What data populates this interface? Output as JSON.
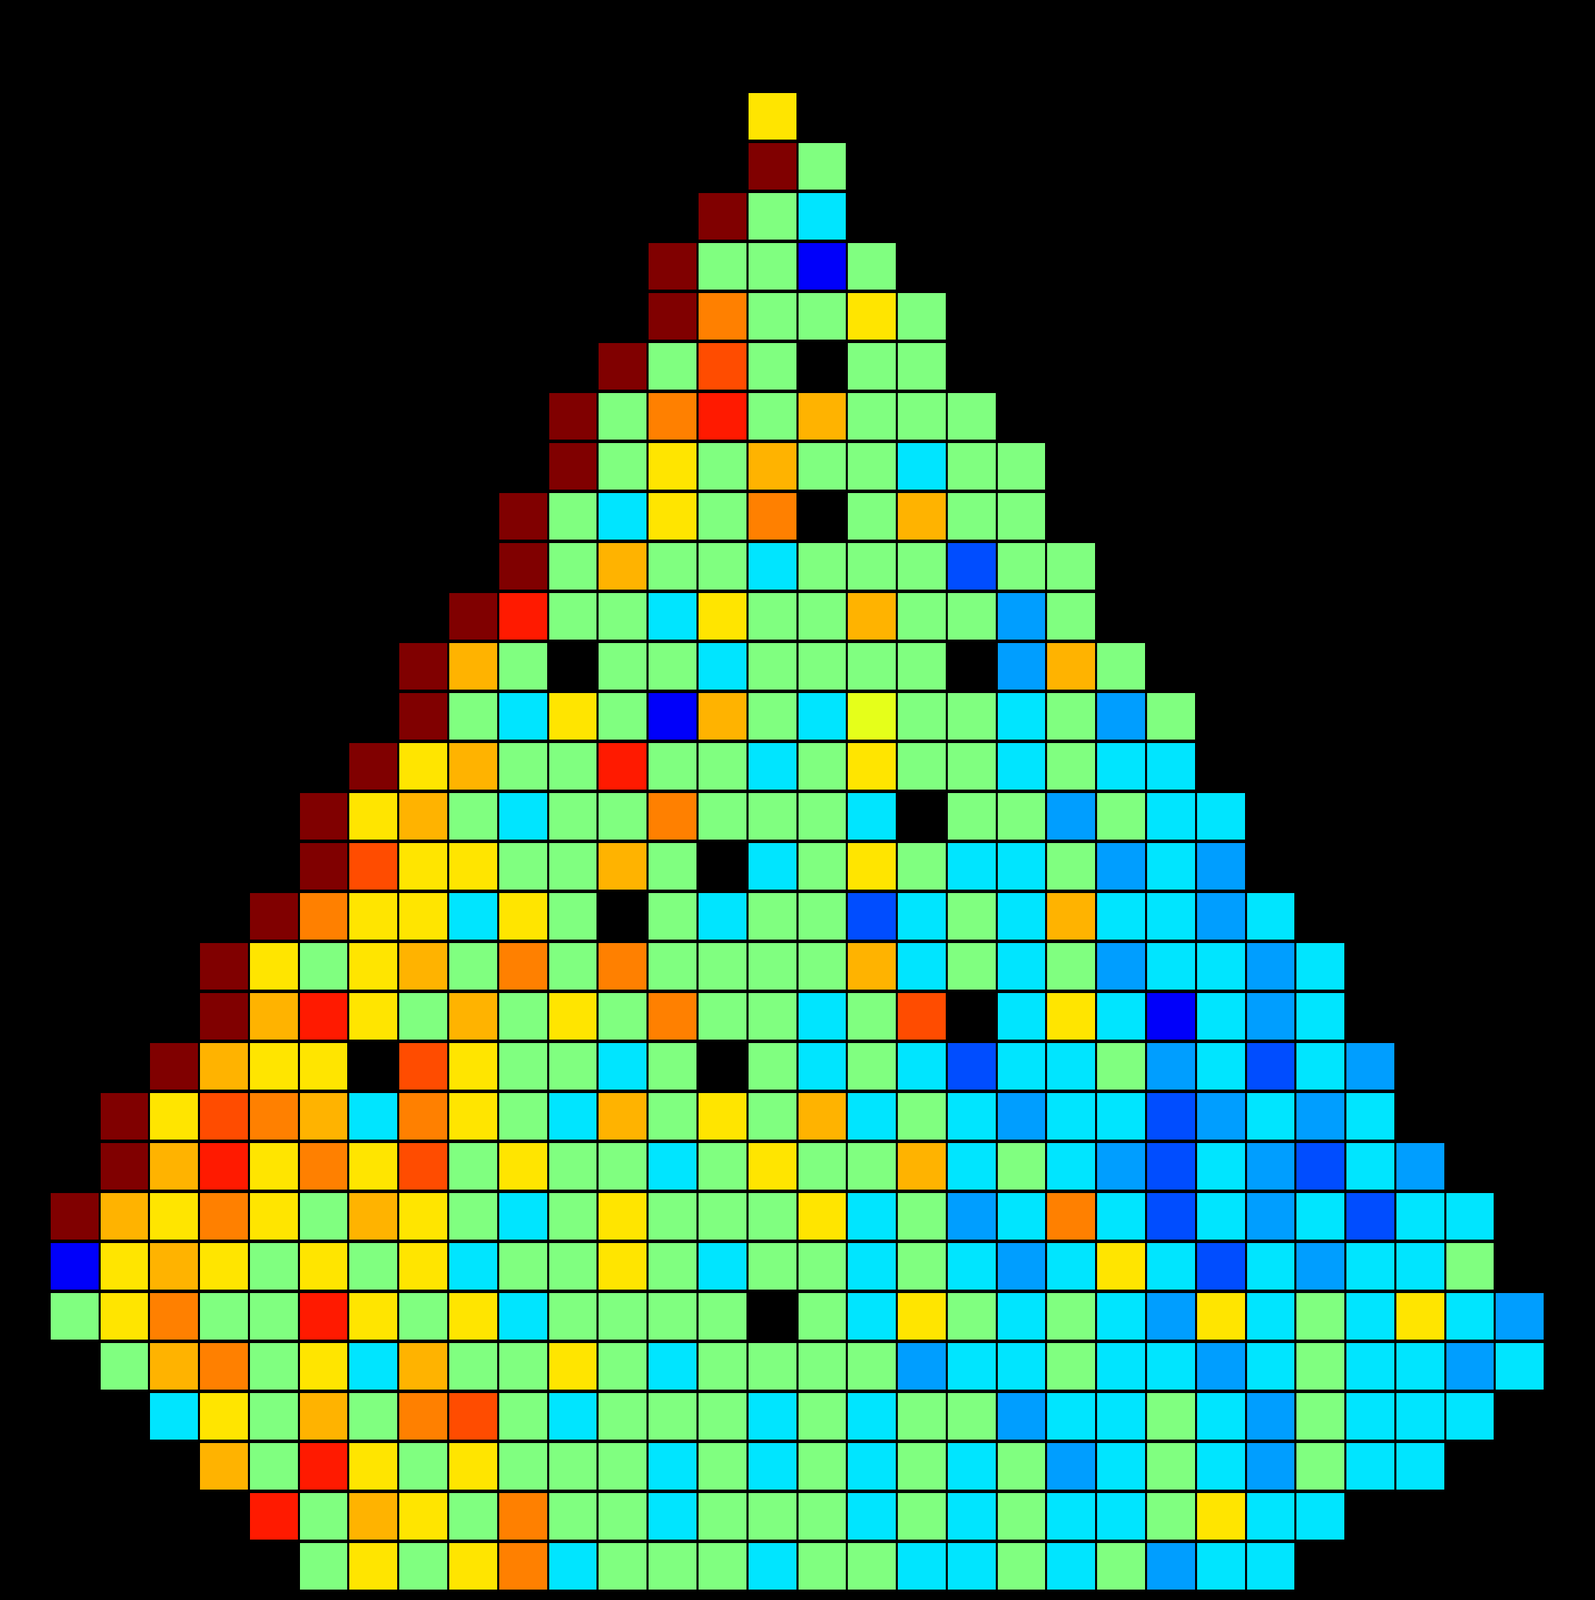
{
  "chart_data": {
    "type": "heatmap",
    "zlim": [
      0,
      1
    ],
    "tick_labels": false,
    "grid": false,
    "cells": [
      [
        null,
        null,
        null,
        null,
        null,
        null,
        null,
        null,
        null,
        null,
        null,
        null,
        null,
        null,
        null,
        0.65,
        null,
        null,
        null,
        null,
        null,
        null,
        null,
        null,
        null,
        null,
        null,
        null,
        null,
        null,
        null,
        null
      ],
      [
        null,
        null,
        null,
        null,
        null,
        null,
        null,
        null,
        null,
        null,
        null,
        null,
        null,
        null,
        null,
        1.0,
        0.5,
        null,
        null,
        null,
        null,
        null,
        null,
        null,
        null,
        null,
        null,
        null,
        null,
        null,
        null,
        null
      ],
      [
        null,
        null,
        null,
        null,
        null,
        null,
        null,
        null,
        null,
        null,
        null,
        null,
        null,
        null,
        1.0,
        0.5,
        0.35,
        null,
        null,
        null,
        null,
        null,
        null,
        null,
        null,
        null,
        null,
        null,
        null,
        null,
        null,
        null
      ],
      [
        null,
        null,
        null,
        null,
        null,
        null,
        null,
        null,
        null,
        null,
        null,
        null,
        null,
        1.0,
        0.5,
        0.5,
        0.12,
        0.5,
        null,
        null,
        null,
        null,
        null,
        null,
        null,
        null,
        null,
        null,
        null,
        null,
        null,
        null
      ],
      [
        null,
        null,
        null,
        null,
        null,
        null,
        null,
        null,
        null,
        null,
        null,
        null,
        null,
        1.0,
        0.75,
        0.5,
        0.5,
        0.65,
        0.5,
        null,
        null,
        null,
        null,
        null,
        null,
        null,
        null,
        null,
        null,
        null,
        null,
        null
      ],
      [
        null,
        null,
        null,
        null,
        null,
        null,
        null,
        null,
        null,
        null,
        null,
        null,
        1.0,
        0.5,
        0.8,
        0.5,
        null,
        0.5,
        0.5,
        null,
        null,
        null,
        null,
        null,
        null,
        null,
        null,
        null,
        null,
        null,
        null,
        null
      ],
      [
        null,
        null,
        null,
        null,
        null,
        null,
        null,
        null,
        null,
        null,
        null,
        1.0,
        0.5,
        0.75,
        0.85,
        0.5,
        0.7,
        0.5,
        0.5,
        0.5,
        null,
        null,
        null,
        null,
        null,
        null,
        null,
        null,
        null,
        null,
        null,
        null
      ],
      [
        null,
        null,
        null,
        null,
        null,
        null,
        null,
        null,
        null,
        null,
        null,
        1.0,
        0.5,
        0.65,
        0.5,
        0.7,
        0.5,
        0.5,
        0.35,
        0.5,
        0.5,
        null,
        null,
        null,
        null,
        null,
        null,
        null,
        null,
        null,
        null,
        null
      ],
      [
        null,
        null,
        null,
        null,
        null,
        null,
        null,
        null,
        null,
        null,
        1.0,
        0.5,
        0.35,
        0.65,
        0.5,
        0.75,
        null,
        0.5,
        0.7,
        0.5,
        0.5,
        null,
        null,
        null,
        null,
        null,
        null,
        null,
        null,
        null,
        null,
        null
      ],
      [
        null,
        null,
        null,
        null,
        null,
        null,
        null,
        null,
        null,
        null,
        1.0,
        0.5,
        0.7,
        0.5,
        0.5,
        0.35,
        0.5,
        0.5,
        0.5,
        0.2,
        0.5,
        0.5,
        null,
        null,
        null,
        null,
        null,
        null,
        null,
        null,
        null,
        null
      ],
      [
        null,
        null,
        null,
        null,
        null,
        null,
        null,
        null,
        null,
        1.0,
        0.85,
        0.5,
        0.5,
        0.35,
        0.65,
        0.5,
        0.5,
        0.7,
        0.5,
        0.5,
        0.28,
        0.5,
        null,
        null,
        null,
        null,
        null,
        null,
        null,
        null,
        null,
        null
      ],
      [
        null,
        null,
        null,
        null,
        null,
        null,
        null,
        null,
        1.0,
        0.7,
        0.5,
        null,
        0.5,
        0.5,
        0.35,
        0.5,
        0.5,
        0.5,
        0.5,
        null,
        0.28,
        0.7,
        0.5,
        null,
        null,
        null,
        null,
        null,
        null,
        null,
        null,
        null
      ],
      [
        null,
        null,
        null,
        null,
        null,
        null,
        null,
        null,
        1.0,
        0.5,
        0.35,
        0.65,
        0.5,
        0.12,
        0.7,
        0.5,
        0.35,
        0.6,
        0.5,
        0.5,
        0.35,
        0.5,
        0.28,
        0.5,
        null,
        null,
        null,
        null,
        null,
        null,
        null,
        null
      ],
      [
        null,
        null,
        null,
        null,
        null,
        null,
        null,
        1.0,
        0.65,
        0.7,
        0.5,
        0.5,
        0.85,
        0.5,
        0.5,
        0.35,
        0.5,
        0.65,
        0.5,
        0.5,
        0.35,
        0.5,
        0.35,
        0.35,
        null,
        null,
        null,
        null,
        null,
        null,
        null,
        null
      ],
      [
        null,
        null,
        null,
        null,
        null,
        null,
        1.0,
        0.65,
        0.7,
        0.5,
        0.35,
        0.5,
        0.5,
        0.75,
        0.5,
        0.5,
        0.5,
        0.35,
        null,
        0.5,
        0.5,
        0.28,
        0.5,
        0.35,
        0.35,
        null,
        null,
        null,
        null,
        null,
        null,
        null
      ],
      [
        null,
        null,
        null,
        null,
        null,
        null,
        1.0,
        0.8,
        0.65,
        0.65,
        0.5,
        0.5,
        0.7,
        0.5,
        null,
        0.35,
        0.5,
        0.65,
        0.5,
        0.35,
        0.35,
        0.5,
        0.28,
        0.35,
        0.28,
        null,
        null,
        null,
        null,
        null,
        null,
        null
      ],
      [
        null,
        null,
        null,
        null,
        null,
        1.0,
        0.75,
        0.65,
        0.65,
        0.35,
        0.65,
        0.5,
        null,
        0.5,
        0.35,
        0.5,
        0.5,
        0.2,
        0.35,
        0.5,
        0.35,
        0.7,
        0.35,
        0.35,
        0.28,
        0.35,
        null,
        null,
        null,
        null,
        null,
        null
      ],
      [
        null,
        null,
        null,
        null,
        1.0,
        0.65,
        0.5,
        0.65,
        0.7,
        0.5,
        0.75,
        0.5,
        0.75,
        0.5,
        0.5,
        0.5,
        0.5,
        0.7,
        0.35,
        0.5,
        0.35,
        0.5,
        0.28,
        0.35,
        0.35,
        0.28,
        0.35,
        null,
        null,
        null,
        null,
        null
      ],
      [
        null,
        null,
        null,
        null,
        1.0,
        0.7,
        0.85,
        0.65,
        0.5,
        0.7,
        0.5,
        0.65,
        0.5,
        0.75,
        0.5,
        0.5,
        0.35,
        0.5,
        0.8,
        null,
        0.35,
        0.65,
        0.35,
        0.12,
        0.35,
        0.28,
        0.35,
        null,
        null,
        null,
        null,
        null
      ],
      [
        null,
        null,
        null,
        1.0,
        0.7,
        0.65,
        0.65,
        null,
        0.8,
        0.65,
        0.5,
        0.5,
        0.35,
        0.5,
        null,
        0.5,
        0.35,
        0.5,
        0.35,
        0.2,
        0.35,
        0.35,
        0.5,
        0.28,
        0.35,
        0.2,
        0.35,
        0.28,
        null,
        null,
        null,
        null
      ],
      [
        null,
        null,
        1.0,
        0.65,
        0.8,
        0.75,
        0.7,
        0.35,
        0.75,
        0.65,
        0.5,
        0.35,
        0.7,
        0.5,
        0.65,
        0.5,
        0.7,
        0.35,
        0.5,
        0.35,
        0.28,
        0.35,
        0.35,
        0.2,
        0.28,
        0.35,
        0.28,
        0.35,
        null,
        null,
        null,
        null
      ],
      [
        null,
        null,
        1.0,
        0.7,
        0.85,
        0.65,
        0.75,
        0.65,
        0.8,
        0.5,
        0.65,
        0.5,
        0.5,
        0.35,
        0.5,
        0.65,
        0.5,
        0.5,
        0.7,
        0.35,
        0.5,
        0.35,
        0.28,
        0.2,
        0.35,
        0.28,
        0.2,
        0.35,
        0.28,
        null,
        null,
        null
      ],
      [
        null,
        1.0,
        0.7,
        0.65,
        0.75,
        0.65,
        0.5,
        0.7,
        0.65,
        0.5,
        0.35,
        0.5,
        0.65,
        0.5,
        0.5,
        0.5,
        0.65,
        0.35,
        0.5,
        0.28,
        0.35,
        0.75,
        0.35,
        0.2,
        0.35,
        0.28,
        0.35,
        0.2,
        0.35,
        0.35,
        null,
        null
      ],
      [
        null,
        0.12,
        0.65,
        0.7,
        0.65,
        0.5,
        0.65,
        0.5,
        0.65,
        0.35,
        0.5,
        0.5,
        0.65,
        0.5,
        0.35,
        0.5,
        0.5,
        0.35,
        0.5,
        0.35,
        0.28,
        0.35,
        0.65,
        0.35,
        0.2,
        0.35,
        0.28,
        0.35,
        0.35,
        0.5,
        null,
        null
      ],
      [
        null,
        0.5,
        0.65,
        0.75,
        0.5,
        0.5,
        0.85,
        0.65,
        0.5,
        0.65,
        0.35,
        0.5,
        0.5,
        0.5,
        0.5,
        null,
        0.5,
        0.35,
        0.65,
        0.5,
        0.35,
        0.5,
        0.35,
        0.28,
        0.65,
        0.35,
        0.5,
        0.35,
        0.65,
        0.35,
        0.28,
        null
      ],
      [
        null,
        null,
        0.5,
        0.7,
        0.75,
        0.5,
        0.65,
        0.35,
        0.7,
        0.5,
        0.5,
        0.65,
        0.5,
        0.35,
        0.5,
        0.5,
        0.5,
        0.5,
        0.28,
        0.35,
        0.35,
        0.5,
        0.35,
        0.35,
        0.28,
        0.35,
        0.5,
        0.35,
        0.35,
        0.28,
        0.35,
        null
      ],
      [
        null,
        null,
        null,
        0.35,
        0.65,
        0.5,
        0.7,
        0.5,
        0.75,
        0.8,
        0.5,
        0.35,
        0.5,
        0.5,
        0.5,
        0.35,
        0.5,
        0.35,
        0.5,
        0.5,
        0.28,
        0.35,
        0.35,
        0.5,
        0.35,
        0.28,
        0.5,
        0.35,
        0.35,
        0.35,
        null,
        null
      ],
      [
        null,
        null,
        null,
        null,
        0.7,
        0.5,
        0.85,
        0.65,
        0.5,
        0.65,
        0.5,
        0.5,
        0.5,
        0.35,
        0.5,
        0.35,
        0.5,
        0.35,
        0.5,
        0.35,
        0.5,
        0.28,
        0.35,
        0.5,
        0.35,
        0.28,
        0.5,
        0.35,
        0.35,
        null,
        null,
        null
      ],
      [
        null,
        null,
        null,
        null,
        null,
        0.85,
        0.5,
        0.7,
        0.65,
        0.5,
        0.75,
        0.5,
        0.5,
        0.35,
        0.5,
        0.5,
        0.5,
        0.35,
        0.5,
        0.35,
        0.5,
        0.35,
        0.35,
        0.5,
        0.65,
        0.35,
        0.35,
        null,
        null,
        null,
        null,
        null
      ],
      [
        null,
        null,
        null,
        null,
        null,
        null,
        0.5,
        0.65,
        0.5,
        0.65,
        0.75,
        0.35,
        0.5,
        0.5,
        0.5,
        0.35,
        0.5,
        0.5,
        0.35,
        0.35,
        0.5,
        0.35,
        0.5,
        0.28,
        0.35,
        0.35,
        null,
        null,
        null,
        null,
        null,
        null
      ]
    ]
  }
}
